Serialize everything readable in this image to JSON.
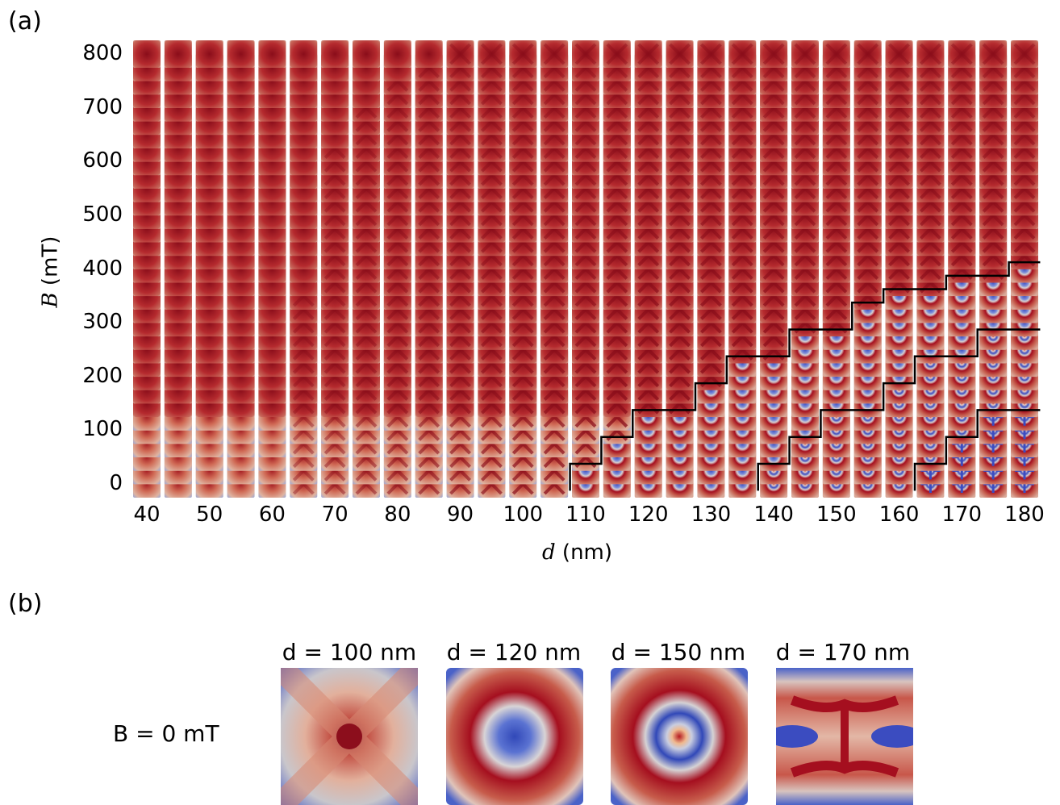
{
  "panel_a": {
    "label": "(a)",
    "chart_data": {
      "type": "heatmap",
      "description_of_axes": "phase diagram of magnetization states",
      "x": [
        40,
        45,
        50,
        55,
        60,
        65,
        70,
        75,
        80,
        85,
        90,
        95,
        100,
        105,
        110,
        115,
        120,
        125,
        130,
        135,
        140,
        145,
        150,
        155,
        160,
        165,
        170,
        175,
        180
      ],
      "y": [
        0,
        25,
        50,
        75,
        100,
        125,
        150,
        175,
        200,
        225,
        250,
        275,
        300,
        325,
        350,
        375,
        400,
        425,
        450,
        475,
        500,
        525,
        550,
        575,
        600,
        625,
        650,
        675,
        700,
        725,
        750,
        775,
        800
      ],
      "x_ticks": [
        "40",
        "50",
        "60",
        "70",
        "80",
        "90",
        "100",
        "110",
        "120",
        "130",
        "140",
        "150",
        "160",
        "170",
        "180"
      ],
      "y_ticks": [
        "0",
        "100",
        "200",
        "300",
        "400",
        "500",
        "600",
        "700",
        "800"
      ],
      "xlabel_var": "d",
      "xlabel_unit": " (nm)",
      "ylabel_var": "B",
      "ylabel_unit": " (mT)",
      "boundary_1": [
        [
          107.5,
          0
        ],
        [
          107.5,
          50
        ],
        [
          112.5,
          50
        ],
        [
          112.5,
          100
        ],
        [
          117.5,
          100
        ],
        [
          117.5,
          150
        ],
        [
          127.5,
          150
        ],
        [
          127.5,
          200
        ],
        [
          132.5,
          200
        ],
        [
          132.5,
          250
        ],
        [
          142.5,
          250
        ],
        [
          142.5,
          300
        ],
        [
          152.5,
          300
        ],
        [
          152.5,
          350
        ],
        [
          157.5,
          350
        ],
        [
          157.5,
          375
        ],
        [
          167.5,
          375
        ],
        [
          167.5,
          400
        ],
        [
          177.5,
          400
        ],
        [
          177.5,
          425
        ],
        [
          182.5,
          425
        ]
      ],
      "boundary_2": [
        [
          137.5,
          0
        ],
        [
          137.5,
          50
        ],
        [
          142.5,
          50
        ],
        [
          142.5,
          100
        ],
        [
          147.5,
          100
        ],
        [
          147.5,
          150
        ],
        [
          157.5,
          150
        ],
        [
          157.5,
          200
        ],
        [
          162.5,
          200
        ],
        [
          162.5,
          250
        ],
        [
          172.5,
          250
        ],
        [
          172.5,
          300
        ],
        [
          182.5,
          300
        ]
      ],
      "boundary_3": [
        [
          162.5,
          0
        ],
        [
          162.5,
          50
        ],
        [
          167.5,
          50
        ],
        [
          167.5,
          100
        ],
        [
          172.5,
          100
        ],
        [
          172.5,
          150
        ],
        [
          182.5,
          150
        ]
      ],
      "colors": {
        "red": "#a50f1f",
        "mid": "#d49a86",
        "grey": "#bdbdbd",
        "blue": "#3b4cc0"
      }
    }
  },
  "panel_b": {
    "label": "(b)",
    "row_label": "B = 0 mT",
    "titles": [
      "d = 100 nm",
      "d = 120 nm",
      "d = 150 nm",
      "d = 170 nm"
    ]
  }
}
